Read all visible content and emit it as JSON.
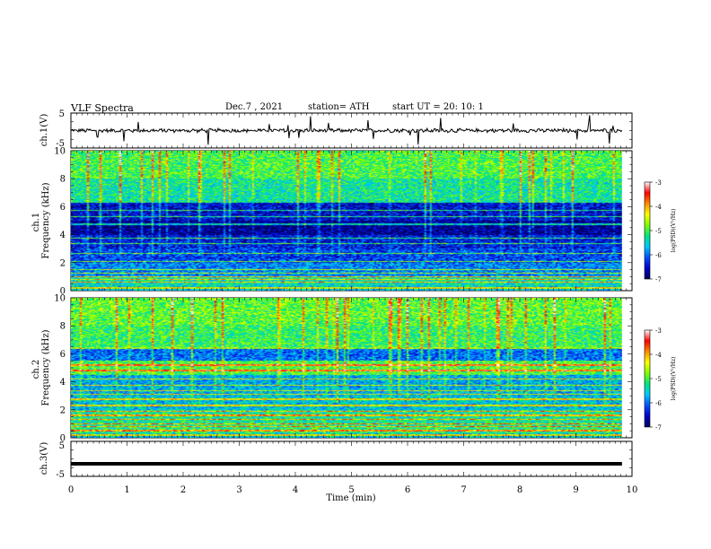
{
  "header": {
    "title": "VLF  Spectra",
    "date": "Dec.7   , 2021",
    "station": "station= ATH",
    "start_ut": "start  UT  =    20: 10: 1"
  },
  "colorbars": [
    {
      "label": "log(PSD)(V²/Hz)",
      "ticks": [
        "-3",
        "-4",
        "-5",
        "-6",
        "-7"
      ]
    },
    {
      "label": "log(PSD)(V²/Hz)",
      "ticks": [
        "-3",
        "-4",
        "-5",
        "-6",
        "-7"
      ]
    }
  ],
  "colormap": [
    "#00005a",
    "#0000c8",
    "#0050ff",
    "#00c8ff",
    "#00e680",
    "#7fff00",
    "#ffff00",
    "#ff8c00",
    "#ff0000",
    "#ffffff"
  ],
  "chart_data": [
    {
      "type": "line",
      "name": "ch1-waveform",
      "ylabel": "ch.1(V)",
      "ylim": [
        -5,
        5
      ],
      "yticks": [
        "5",
        "-5"
      ],
      "xlim": [
        0,
        10
      ],
      "baseline": 0,
      "line_color": "#000000"
    },
    {
      "type": "heatmap",
      "name": "ch1-spectrogram",
      "ylabel": "ch.1\nFrequency  (kHz)",
      "ylim": [
        0,
        10
      ],
      "yticks": [
        "0",
        "2",
        "4",
        "6",
        "8",
        "10"
      ],
      "xlim": [
        0,
        10
      ],
      "data_end_min": 9.82,
      "zlim": [
        -7,
        -3
      ],
      "band_levels": [
        {
          "f": [
            0,
            0.3
          ],
          "level": -5.6
        },
        {
          "f": [
            0.3,
            1.0
          ],
          "level": -5.4
        },
        {
          "f": [
            1.0,
            2.0
          ],
          "level": -5.9
        },
        {
          "f": [
            2.0,
            3.0
          ],
          "level": -6.2
        },
        {
          "f": [
            3.0,
            4.0
          ],
          "level": -6.4
        },
        {
          "f": [
            4.0,
            5.0
          ],
          "level": -6.8
        },
        {
          "f": [
            5.0,
            6.3
          ],
          "level": -6.5
        },
        {
          "f": [
            6.3,
            8.0
          ],
          "level": -5.3
        },
        {
          "f": [
            8.0,
            10.0
          ],
          "level": -5.0
        }
      ],
      "lines_khz": [
        0.2,
        0.6,
        0.8,
        1.0,
        1.25,
        1.5,
        2.1,
        2.65,
        3.35,
        3.75,
        4.75,
        5.3,
        5.75
      ]
    },
    {
      "type": "heatmap",
      "name": "ch2-spectrogram",
      "ylabel": "ch.2\nFrequency  (kHz)",
      "ylim": [
        0,
        10
      ],
      "yticks": [
        "0",
        "2",
        "4",
        "6",
        "8",
        "10"
      ],
      "xlim": [
        0,
        10
      ],
      "data_end_min": 9.82,
      "zlim": [
        -7,
        -3
      ],
      "band_levels": [
        {
          "f": [
            0,
            0.3
          ],
          "level": -5.6
        },
        {
          "f": [
            0.3,
            1.0
          ],
          "level": -5.2
        },
        {
          "f": [
            1.0,
            2.0
          ],
          "level": -5.3
        },
        {
          "f": [
            2.0,
            3.0
          ],
          "level": -5.6
        },
        {
          "f": [
            3.0,
            4.5
          ],
          "level": -5.7
        },
        {
          "f": [
            4.5,
            5.5
          ],
          "level": -5.0
        },
        {
          "f": [
            5.5,
            6.5
          ],
          "level": -6.0
        },
        {
          "f": [
            6.5,
            8.0
          ],
          "level": -5.1
        },
        {
          "f": [
            8.0,
            10.0
          ],
          "level": -4.9
        }
      ],
      "lines_khz": [
        0.2,
        0.5,
        0.8,
        1.0,
        1.3,
        1.6,
        1.9,
        2.3,
        2.75,
        3.1,
        3.35,
        3.75,
        4.2,
        4.8,
        5.2,
        6.4
      ]
    },
    {
      "type": "line",
      "name": "ch3-waveform",
      "ylabel": "ch.3(V)",
      "ylim": [
        -5,
        5
      ],
      "yticks": [
        "5",
        "-5"
      ],
      "xlim": [
        0,
        10
      ],
      "baseline": -1.4,
      "line_color": "#000000"
    }
  ],
  "xaxis": {
    "label": "Time  (min)",
    "ticks": [
      "0",
      "1",
      "2",
      "3",
      "4",
      "5",
      "6",
      "7",
      "8",
      "9",
      "10"
    ]
  }
}
